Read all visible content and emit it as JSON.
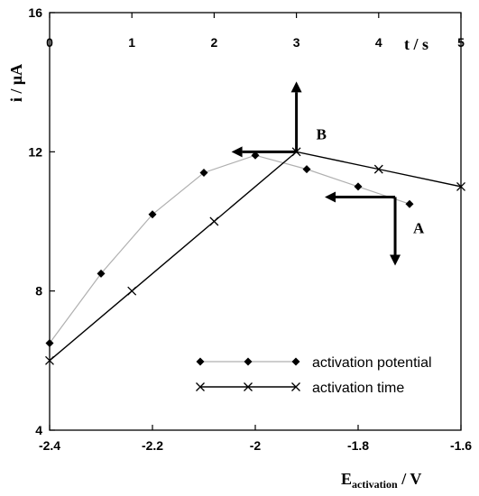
{
  "chart_data": {
    "type": "line",
    "ylabel": "i / μA",
    "xlabel_bottom_main": "E",
    "xlabel_bottom_sub": "activation",
    "xlabel_bottom_unit": " / V",
    "xlabel_top": "t / s",
    "ylim": [
      4,
      16
    ],
    "xlim_bottom": [
      -2.4,
      -1.6
    ],
    "xlim_top": [
      0,
      5
    ],
    "yticks": [
      "4",
      "8",
      "12",
      "16"
    ],
    "xticks_bottom": [
      "-2.4",
      "-2.2",
      "-2",
      "-1.8",
      "-1.6"
    ],
    "xticks_top": [
      "0",
      "1",
      "2",
      "3",
      "4",
      "5"
    ],
    "series": [
      {
        "name": "activation potential",
        "axis": "bottom",
        "marker": "diamond",
        "line_color": "#b0b0b0",
        "x": [
          -2.4,
          -2.3,
          -2.2,
          -2.1,
          -2.0,
          -1.9,
          -1.8,
          -1.7
        ],
        "y": [
          6.5,
          8.5,
          10.2,
          11.4,
          11.9,
          11.5,
          11.0,
          10.5
        ]
      },
      {
        "name": "activation time",
        "axis": "top",
        "marker": "x",
        "line_color": "#000000",
        "x": [
          0,
          1,
          2,
          3,
          4,
          5
        ],
        "y": [
          6,
          8,
          10,
          12,
          11.5,
          11
        ]
      }
    ],
    "annotations": [
      {
        "label": "A",
        "arrow_origin": [
          4.2,
          10.7
        ],
        "arrows": [
          "left",
          "down"
        ]
      },
      {
        "label": "B",
        "arrow_origin": [
          3.0,
          12.0
        ],
        "arrows": [
          "left",
          "up"
        ]
      }
    ],
    "legend_position": "bottom-right",
    "grid": false
  }
}
